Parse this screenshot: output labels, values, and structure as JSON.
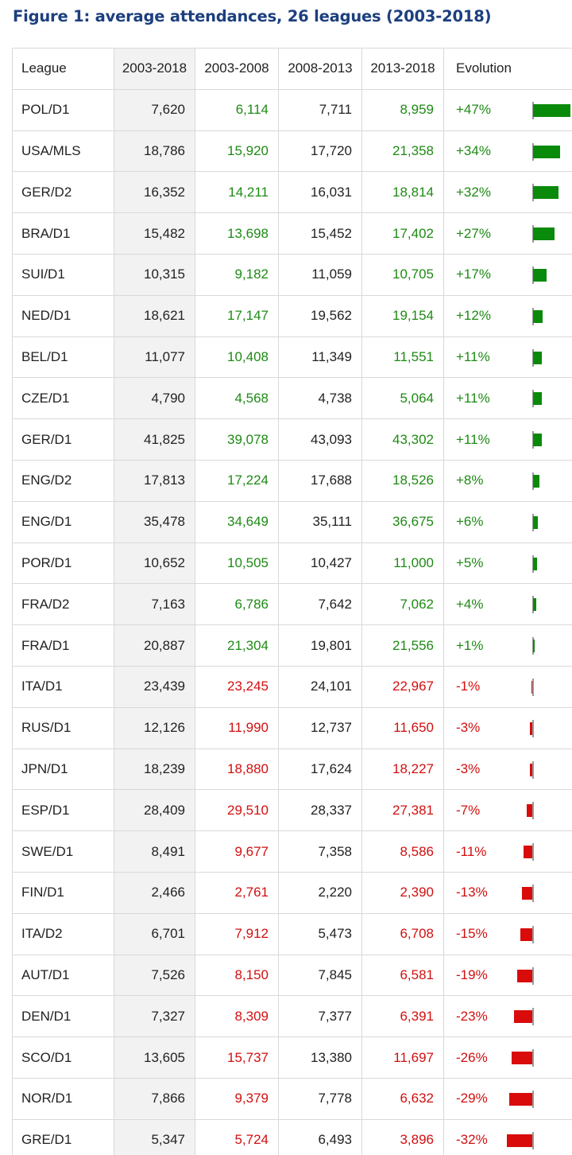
{
  "title": "Figure 1: average attendances, 26 leagues (2003-2018)",
  "colors": {
    "title": "#1c3f7e",
    "positive": "#1e8a14",
    "negative": "#d20f0f",
    "bar_positive": "#0a8a0a",
    "bar_negative": "#d90b0b"
  },
  "columns": [
    "League",
    "2003-2018",
    "2003-2008",
    "2008-2013",
    "2013-2018",
    "Evolution"
  ],
  "chart_data": {
    "type": "table",
    "title": "Figure 1: average attendances, 26 leagues (2003-2018)",
    "columns": [
      "League",
      "2003-2018",
      "2003-2008",
      "2008-2013",
      "2013-2018",
      "Evolution"
    ],
    "rows": [
      {
        "league": "POL/D1",
        "all": "7,620",
        "p1": "6,114",
        "p2": "7,711",
        "p3": "8,959",
        "evo": "+47%",
        "evo_value": 47
      },
      {
        "league": "USA/MLS",
        "all": "18,786",
        "p1": "15,920",
        "p2": "17,720",
        "p3": "21,358",
        "evo": "+34%",
        "evo_value": 34
      },
      {
        "league": "GER/D2",
        "all": "16,352",
        "p1": "14,211",
        "p2": "16,031",
        "p3": "18,814",
        "evo": "+32%",
        "evo_value": 32
      },
      {
        "league": "BRA/D1",
        "all": "15,482",
        "p1": "13,698",
        "p2": "15,452",
        "p3": "17,402",
        "evo": "+27%",
        "evo_value": 27
      },
      {
        "league": "SUI/D1",
        "all": "10,315",
        "p1": "9,182",
        "p2": "11,059",
        "p3": "10,705",
        "evo": "+17%",
        "evo_value": 17
      },
      {
        "league": "NED/D1",
        "all": "18,621",
        "p1": "17,147",
        "p2": "19,562",
        "p3": "19,154",
        "evo": "+12%",
        "evo_value": 12
      },
      {
        "league": "BEL/D1",
        "all": "11,077",
        "p1": "10,408",
        "p2": "11,349",
        "p3": "11,551",
        "evo": "+11%",
        "evo_value": 11
      },
      {
        "league": "CZE/D1",
        "all": "4,790",
        "p1": "4,568",
        "p2": "4,738",
        "p3": "5,064",
        "evo": "+11%",
        "evo_value": 11
      },
      {
        "league": "GER/D1",
        "all": "41,825",
        "p1": "39,078",
        "p2": "43,093",
        "p3": "43,302",
        "evo": "+11%",
        "evo_value": 11
      },
      {
        "league": "ENG/D2",
        "all": "17,813",
        "p1": "17,224",
        "p2": "17,688",
        "p3": "18,526",
        "evo": "+8%",
        "evo_value": 8
      },
      {
        "league": "ENG/D1",
        "all": "35,478",
        "p1": "34,649",
        "p2": "35,111",
        "p3": "36,675",
        "evo": "+6%",
        "evo_value": 6
      },
      {
        "league": "POR/D1",
        "all": "10,652",
        "p1": "10,505",
        "p2": "10,427",
        "p3": "11,000",
        "evo": "+5%",
        "evo_value": 5
      },
      {
        "league": "FRA/D2",
        "all": "7,163",
        "p1": "6,786",
        "p2": "7,642",
        "p3": "7,062",
        "evo": "+4%",
        "evo_value": 4
      },
      {
        "league": "FRA/D1",
        "all": "20,887",
        "p1": "21,304",
        "p2": "19,801",
        "p3": "21,556",
        "evo": "+1%",
        "evo_value": 1
      },
      {
        "league": "ITA/D1",
        "all": "23,439",
        "p1": "23,245",
        "p2": "24,101",
        "p3": "22,967",
        "evo": "-1%",
        "evo_value": -1
      },
      {
        "league": "RUS/D1",
        "all": "12,126",
        "p1": "11,990",
        "p2": "12,737",
        "p3": "11,650",
        "evo": "-3%",
        "evo_value": -3
      },
      {
        "league": "JPN/D1",
        "all": "18,239",
        "p1": "18,880",
        "p2": "17,624",
        "p3": "18,227",
        "evo": "-3%",
        "evo_value": -3
      },
      {
        "league": "ESP/D1",
        "all": "28,409",
        "p1": "29,510",
        "p2": "28,337",
        "p3": "27,381",
        "evo": "-7%",
        "evo_value": -7
      },
      {
        "league": "SWE/D1",
        "all": "8,491",
        "p1": "9,677",
        "p2": "7,358",
        "p3": "8,586",
        "evo": "-11%",
        "evo_value": -11
      },
      {
        "league": "FIN/D1",
        "all": "2,466",
        "p1": "2,761",
        "p2": "2,220",
        "p3": "2,390",
        "evo": "-13%",
        "evo_value": -13
      },
      {
        "league": "ITA/D2",
        "all": "6,701",
        "p1": "7,912",
        "p2": "5,473",
        "p3": "6,708",
        "evo": "-15%",
        "evo_value": -15
      },
      {
        "league": "AUT/D1",
        "all": "7,526",
        "p1": "8,150",
        "p2": "7,845",
        "p3": "6,581",
        "evo": "-19%",
        "evo_value": -19
      },
      {
        "league": "DEN/D1",
        "all": "7,327",
        "p1": "8,309",
        "p2": "7,377",
        "p3": "6,391",
        "evo": "-23%",
        "evo_value": -23
      },
      {
        "league": "SCO/D1",
        "all": "13,605",
        "p1": "15,737",
        "p2": "13,380",
        "p3": "11,697",
        "evo": "-26%",
        "evo_value": -26
      },
      {
        "league": "NOR/D1",
        "all": "7,866",
        "p1": "9,379",
        "p2": "7,778",
        "p3": "6,632",
        "evo": "-29%",
        "evo_value": -29
      },
      {
        "league": "GRE/D1",
        "all": "5,347",
        "p1": "5,724",
        "p2": "6,493",
        "p3": "3,896",
        "evo": "-32%",
        "evo_value": -32
      }
    ]
  }
}
